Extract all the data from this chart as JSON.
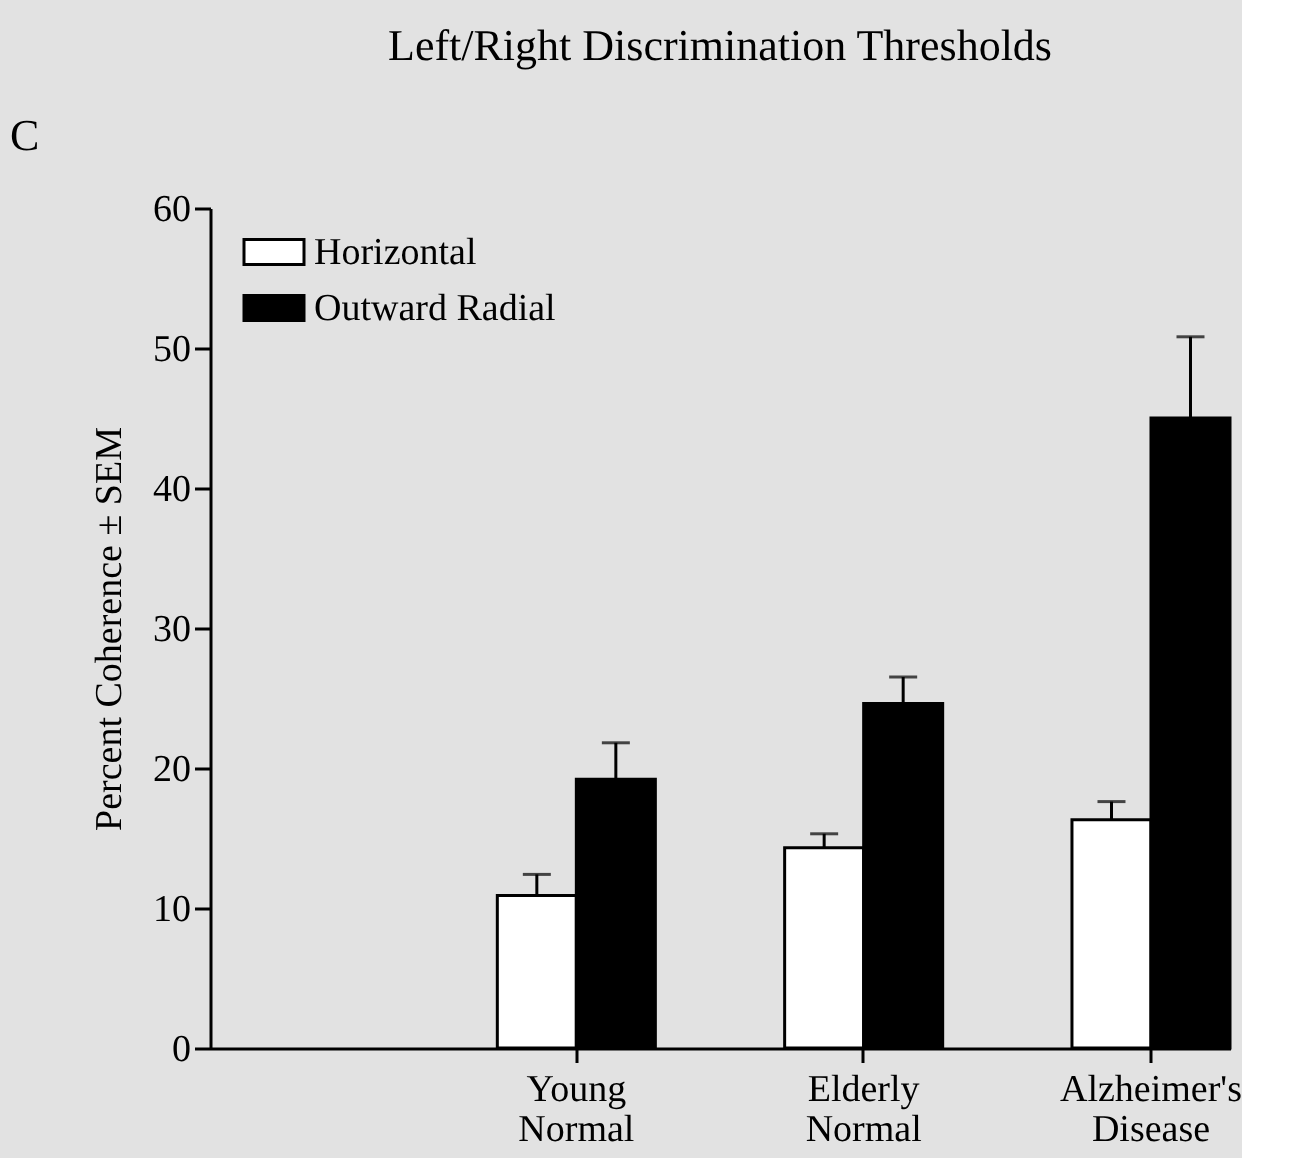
{
  "chart_data": {
    "type": "bar",
    "title": "Left/Right Discrimination Thresholds",
    "ylabel": "Percent Coherence ± SEM",
    "annotations": [
      "C"
    ],
    "categories": [
      "Young Normal",
      "Elderly Normal",
      "Alzheimer's Disease"
    ],
    "series": [
      {
        "name": "Horizontal",
        "color": "#ffffff",
        "values": [
          10.9,
          14.3,
          16.3
        ],
        "errors": [
          [
            10.9,
            12.4
          ],
          [
            14.3,
            15.3
          ],
          [
            16.3,
            17.6
          ]
        ]
      },
      {
        "name": "Outward Radial",
        "color": "#000000",
        "values": [
          19.2,
          24.6,
          45.0
        ],
        "errors": [
          [
            19.2,
            21.8
          ],
          [
            24.6,
            26.5
          ],
          [
            45.0,
            50.8
          ]
        ]
      }
    ],
    "ylim": [
      0,
      60
    ],
    "yticks": [
      0,
      10,
      20,
      30,
      40,
      50,
      60
    ],
    "legend": "top left"
  }
}
